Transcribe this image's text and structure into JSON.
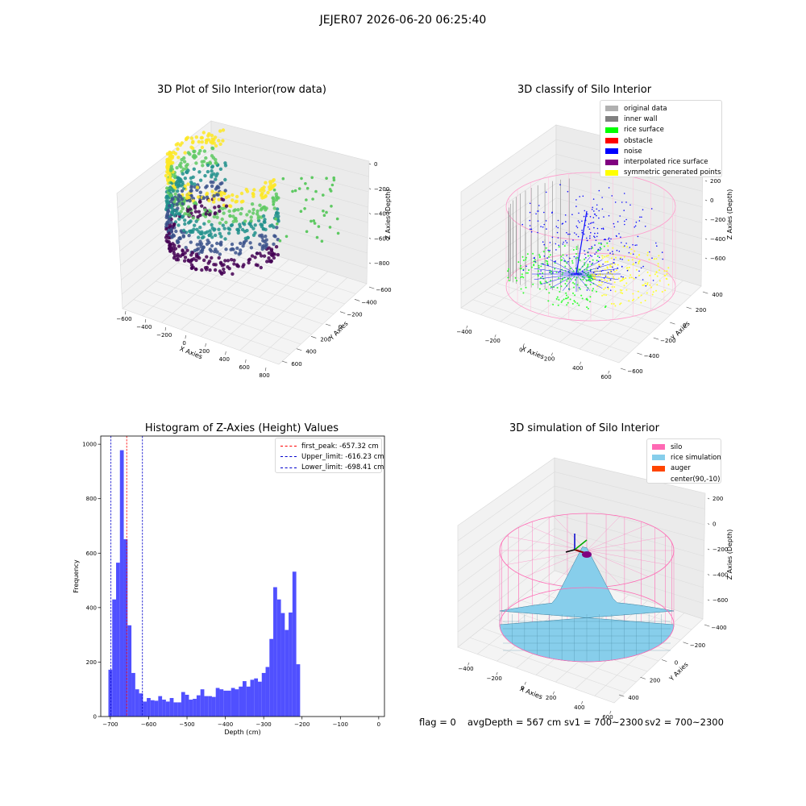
{
  "figure": {
    "title": "JEJER07 2026-06-20 06:25:40"
  },
  "status_line": {
    "flag": "flag = 0",
    "avg_depth": "avgDepth = 567 cm",
    "sv1": "sv1 = 700~2300",
    "sv2": "sv2 = 700~2300"
  },
  "colors": {
    "histogram": "#4d4dff",
    "first_peak_line": "#ff0000",
    "limit_line": "#0000cc",
    "silo": "#ff69b4",
    "rice": "#87ceeb",
    "auger": "#ff4500"
  },
  "chart_data": [
    {
      "type": "scatter",
      "subtype": "3d",
      "title": "3D Plot of Silo Interior(row data)",
      "xlabel": "X Axies",
      "ylabel": "Y Axies",
      "zlabel": "Z Axies (Depth)",
      "x_ticks": [
        "−600",
        "−400",
        "−200",
        "0",
        "200",
        "400",
        "600",
        "800"
      ],
      "y_ticks": [
        "−600",
        "−400",
        "−200",
        "0",
        "200",
        "400",
        "600"
      ],
      "z_ticks": [
        "0",
        "−200",
        "−400",
        "−600",
        "−800"
      ],
      "colormap": "viridis"
    },
    {
      "type": "scatter",
      "subtype": "3d",
      "title": "3D classify of Silo Interior",
      "xlabel": "X Axies",
      "ylabel": "Y Axies",
      "zlabel": "Z Axies (Depth)",
      "x_ticks": [
        "−400",
        "−200",
        "0",
        "200",
        "400",
        "600"
      ],
      "y_ticks": [
        "−600",
        "−400",
        "−200",
        "0",
        "200",
        "400"
      ],
      "z_ticks": [
        "200",
        "0",
        "−200",
        "−400",
        "−600"
      ],
      "legend": [
        {
          "name": "original data",
          "color": "#b0b0b0"
        },
        {
          "name": "inner wall",
          "color": "#808080"
        },
        {
          "name": "rice surface",
          "color": "#00ff00"
        },
        {
          "name": "obstacle",
          "color": "#ff0000"
        },
        {
          "name": "noise",
          "color": "#0000ff"
        },
        {
          "name": "interpolated rice surface",
          "color": "#800080"
        },
        {
          "name": "symmetric generated points",
          "color": "#ffff00"
        }
      ]
    },
    {
      "type": "bar",
      "subtype": "histogram",
      "title": "Histogram of Z-Axies (Height) Values",
      "xlabel": "Depth (cm)",
      "ylabel": "Frequency",
      "xlim": [
        -725,
        15
      ],
      "ylim": [
        0,
        1030
      ],
      "x_ticks": [
        -700,
        -600,
        -500,
        -400,
        -300,
        -200,
        -100,
        0
      ],
      "x_tick_labels": [
        "−700",
        "−600",
        "−500",
        "−400",
        "−300",
        "−200",
        "−100",
        "0"
      ],
      "y_ticks": [
        0,
        200,
        400,
        600,
        800,
        1000
      ],
      "bin_start": -705,
      "bin_width": 10,
      "counts": [
        172,
        430,
        565,
        978,
        651,
        335,
        160,
        100,
        85,
        55,
        68,
        60,
        58,
        75,
        62,
        55,
        68,
        52,
        52,
        90,
        80,
        62,
        65,
        78,
        100,
        75,
        75,
        72,
        105,
        100,
        95,
        95,
        105,
        100,
        110,
        130,
        110,
        135,
        140,
        128,
        160,
        182,
        285,
        475,
        430,
        380,
        318,
        382,
        532,
        192
      ],
      "vlines": [
        {
          "label": "first_peak: -657.32 cm",
          "value": -657.32,
          "color": "#ff0000"
        },
        {
          "label": "Upper_limit: -616.23 cm",
          "value": -616.23,
          "color": "#0000cc"
        },
        {
          "label": "Lower_limit: -698.41 cm",
          "value": -698.41,
          "color": "#0000cc"
        }
      ]
    },
    {
      "type": "surface",
      "subtype": "3d",
      "title": "3D simulation of Silo Interior",
      "xlabel": "X Axies",
      "ylabel": "Y Axies",
      "zlabel": "Z Axies (Depth)",
      "x_ticks": [
        "−400",
        "−200",
        "0",
        "200",
        "400",
        "600"
      ],
      "y_ticks": [
        "−400",
        "−200",
        "0",
        "200",
        "400"
      ],
      "z_ticks": [
        "200",
        "0",
        "−200",
        "−400",
        "−600"
      ],
      "legend": [
        {
          "name": "silo",
          "color": "#ff69b4"
        },
        {
          "name": "rice simulation",
          "color": "#87ceeb"
        },
        {
          "name": "auger",
          "color": "#ff4500"
        },
        {
          "name": "center(90,-10)",
          "color": ""
        }
      ]
    }
  ]
}
